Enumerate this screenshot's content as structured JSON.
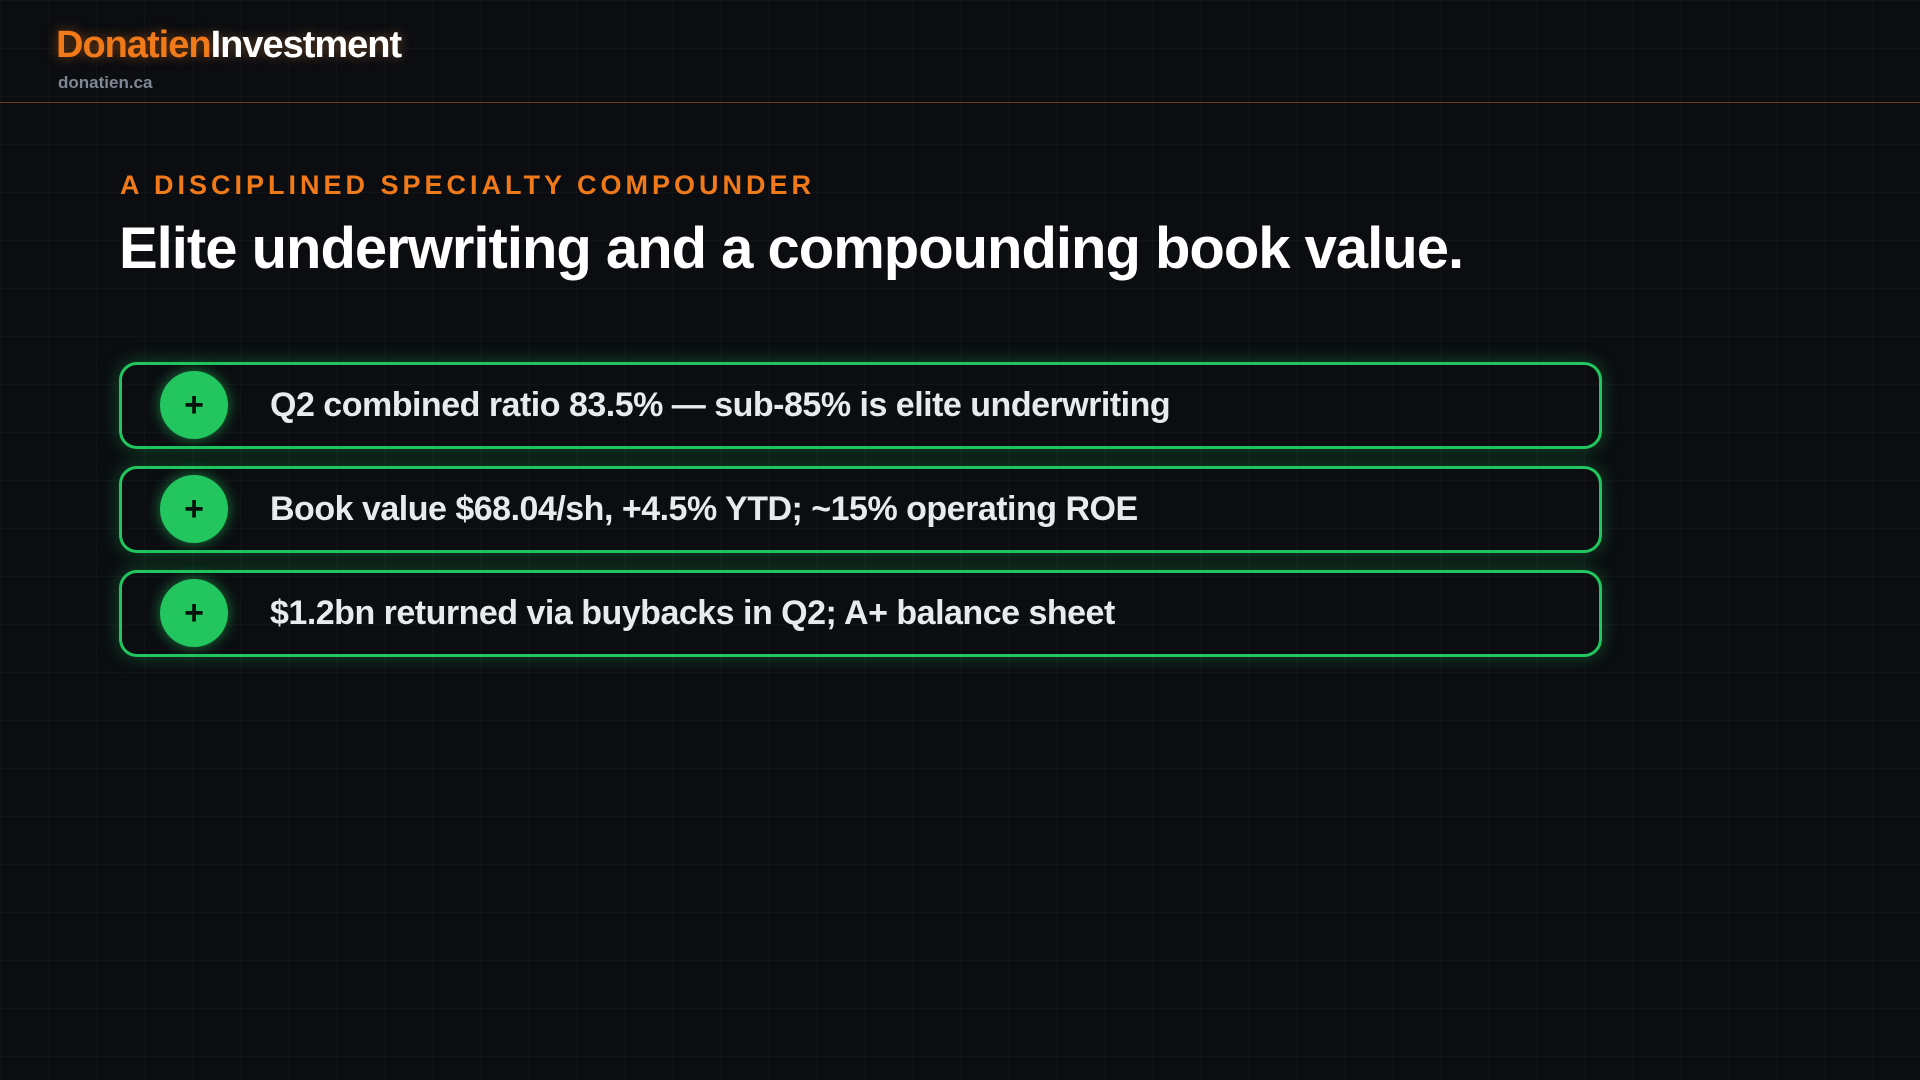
{
  "header": {
    "brand_primary": "Donatien",
    "brand_secondary": "Investment",
    "site": "donatien.ca"
  },
  "slide": {
    "kicker": "A DISCIPLINED SPECIALTY COMPOUNDER",
    "title": "Elite underwriting and a compounding book value.",
    "items": [
      {
        "icon": "+",
        "text": "Q2 combined ratio 83.5% — sub-85% is elite underwriting"
      },
      {
        "icon": "+",
        "text": "Book value $68.04/sh, +4.5% YTD; ~15% operating ROE"
      },
      {
        "icon": "+",
        "text": "$1.2bn returned via buybacks in Q2; A+ balance sheet"
      }
    ]
  }
}
